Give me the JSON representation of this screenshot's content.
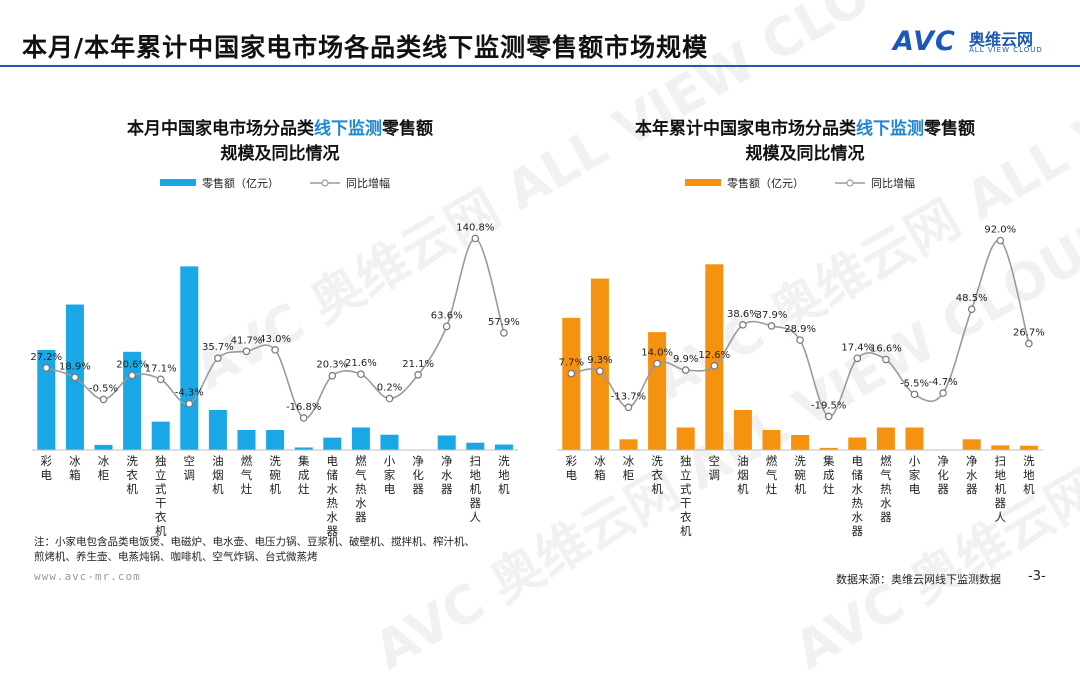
{
  "page": {
    "title": "本月/本年累计中国家电市场各品类线下监测零售额市场规模",
    "logo_text": "AVC",
    "logo_cn": "奥维云网",
    "logo_en": "ALL VIEW CLOUD",
    "watermark": "AVC 奥维云网 ALL VIEW CLOUD",
    "footnote_lines": [
      "注：小家电包含品类电饭煲、电磁炉、电水壶、电压力锅、豆浆机、破壁机、搅拌机、榨汁机、",
      "煎烤机、养生壶、电蒸炖锅、咖啡机、空气炸锅、台式微蒸烤"
    ],
    "site": "www.avc-mr.com",
    "source": "数据来源：奥维云网线下监测数据",
    "page_number": "-3-"
  },
  "chart_data": [
    {
      "type": "bar",
      "title_parts": [
        "本月中国家电市场分品类",
        "线下监测",
        "零售额"
      ],
      "title_line2": "规模及同比情况",
      "bar_color": "#1aa7e6",
      "line_color": "#9a9a9a",
      "legend": {
        "bars": "零售额（亿元）",
        "line": "同比增幅"
      },
      "categories": [
        "彩电",
        "冰箱",
        "冰柜",
        "洗衣机",
        "独立式干衣机",
        "空调",
        "油烟机",
        "燃气灶",
        "洗碗机",
        "集成灶",
        "电储水热水器",
        "燃气热水器",
        "小家电",
        "净化器",
        "净水器",
        "扫地机器人",
        "洗地机"
      ],
      "series": [
        {
          "name": "零售额（亿元）",
          "values": [
            27.5,
            40,
            1.4,
            27,
            7.8,
            50.5,
            11,
            5.5,
            5.5,
            0.7,
            3.4,
            6.2,
            4.2,
            0,
            4,
            2,
            1.5
          ]
        },
        {
          "name": "同比增幅",
          "values": [
            27.2,
            18.9,
            -0.5,
            20.6,
            17.1,
            -4.3,
            35.7,
            41.7,
            43.0,
            -16.8,
            20.3,
            21.6,
            0.2,
            21.1,
            63.6,
            140.8,
            57.9
          ]
        }
      ],
      "data_labels": [
        "27.2%",
        "18.9%",
        "-0.5%",
        "20.6%",
        "17.1%",
        "-4.3%",
        "35.7%",
        "41.7%",
        "43.0%",
        "-16.8%",
        "20.3%",
        "21.6%",
        "0.2%",
        "21.1%",
        "63.6%",
        "140.8%",
        "57.9%"
      ],
      "ylim_bars": [
        0,
        55
      ],
      "ylim_line": [
        -30,
        150
      ]
    },
    {
      "type": "bar",
      "title_parts": [
        "本年累计中国家电市场分品类",
        "线下监测",
        "零售额"
      ],
      "title_line2": "规模及同比情况",
      "bar_color": "#f5920f",
      "line_color": "#9a9a9a",
      "legend": {
        "bars": "零售额（亿元）",
        "line": "同比增幅"
      },
      "categories": [
        "彩电",
        "冰箱",
        "冰柜",
        "洗衣机",
        "独立式干衣机",
        "空调",
        "油烟机",
        "燃气灶",
        "洗碗机",
        "集成灶",
        "电储水热水器",
        "燃气热水器",
        "小家电",
        "净化器",
        "净水器",
        "扫地机器人",
        "洗地机"
      ],
      "series": [
        {
          "name": "零售额（亿元）",
          "values": [
            370,
            480,
            30,
            330,
            63,
            520,
            112,
            56,
            42,
            6,
            35,
            63,
            63,
            0,
            30,
            13,
            12
          ]
        },
        {
          "name": "同比增幅",
          "values": [
            7.7,
            9.3,
            -13.7,
            14.0,
            9.9,
            12.6,
            38.6,
            37.9,
            28.9,
            -19.5,
            17.4,
            16.6,
            -5.5,
            -4.7,
            48.5,
            92.0,
            26.7
          ]
        }
      ],
      "data_labels": [
        "7.7%",
        "9.3%",
        "-13.7%",
        "14.0%",
        "9.9%",
        "12.6%",
        "38.6%",
        "37.9%",
        "28.9%",
        "-19.5%",
        "17.4%",
        "16.6%",
        "-5.5%",
        "-4.7%",
        "48.5%",
        "92.0%",
        "26.7%"
      ],
      "ylim_bars": [
        0,
        560
      ],
      "ylim_line": [
        -30,
        100
      ]
    }
  ]
}
